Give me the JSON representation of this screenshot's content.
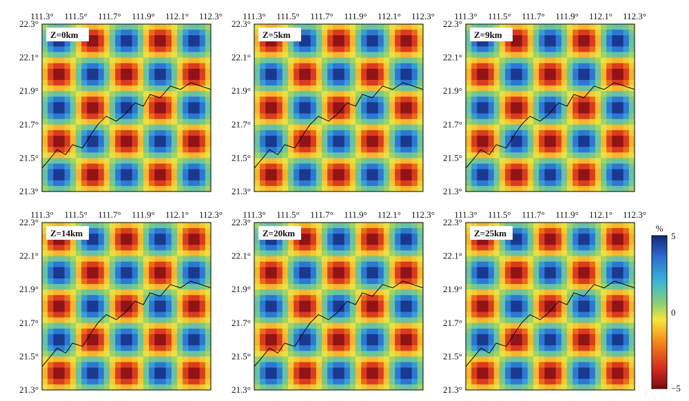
{
  "chart_data": {
    "type": "heatmap",
    "title": "",
    "colorbar": {
      "unit": "%",
      "max_label": "5",
      "mid_label": "0",
      "min_label": "−5",
      "range": [
        -5,
        5
      ],
      "colors": [
        "#7a0b12",
        "#d7301f",
        "#f58518",
        "#f7e53b",
        "#8fd16e",
        "#3ab5d8",
        "#2b6fd1",
        "#13287a"
      ]
    },
    "x_ticks": [
      "111.3°",
      "111.5°",
      "111.7°",
      "111.9°",
      "112.1°",
      "112.3°"
    ],
    "y_ticks": [
      "22.3°",
      "22.1°",
      "21.9°",
      "21.7°",
      "21.5°",
      "21.3°"
    ],
    "xlim": [
      111.3,
      112.3
    ],
    "ylim": [
      21.3,
      22.3
    ],
    "grid": false,
    "panels": [
      {
        "depth_label": "Z=0km",
        "phase": 0
      },
      {
        "depth_label": "Z=5km",
        "phase": 1
      },
      {
        "depth_label": "Z=9km",
        "phase": 0
      },
      {
        "depth_label": "Z=14km",
        "phase": 1
      },
      {
        "depth_label": "Z=20km",
        "phase": 0
      },
      {
        "depth_label": "Z=25km",
        "phase": 1
      }
    ]
  }
}
